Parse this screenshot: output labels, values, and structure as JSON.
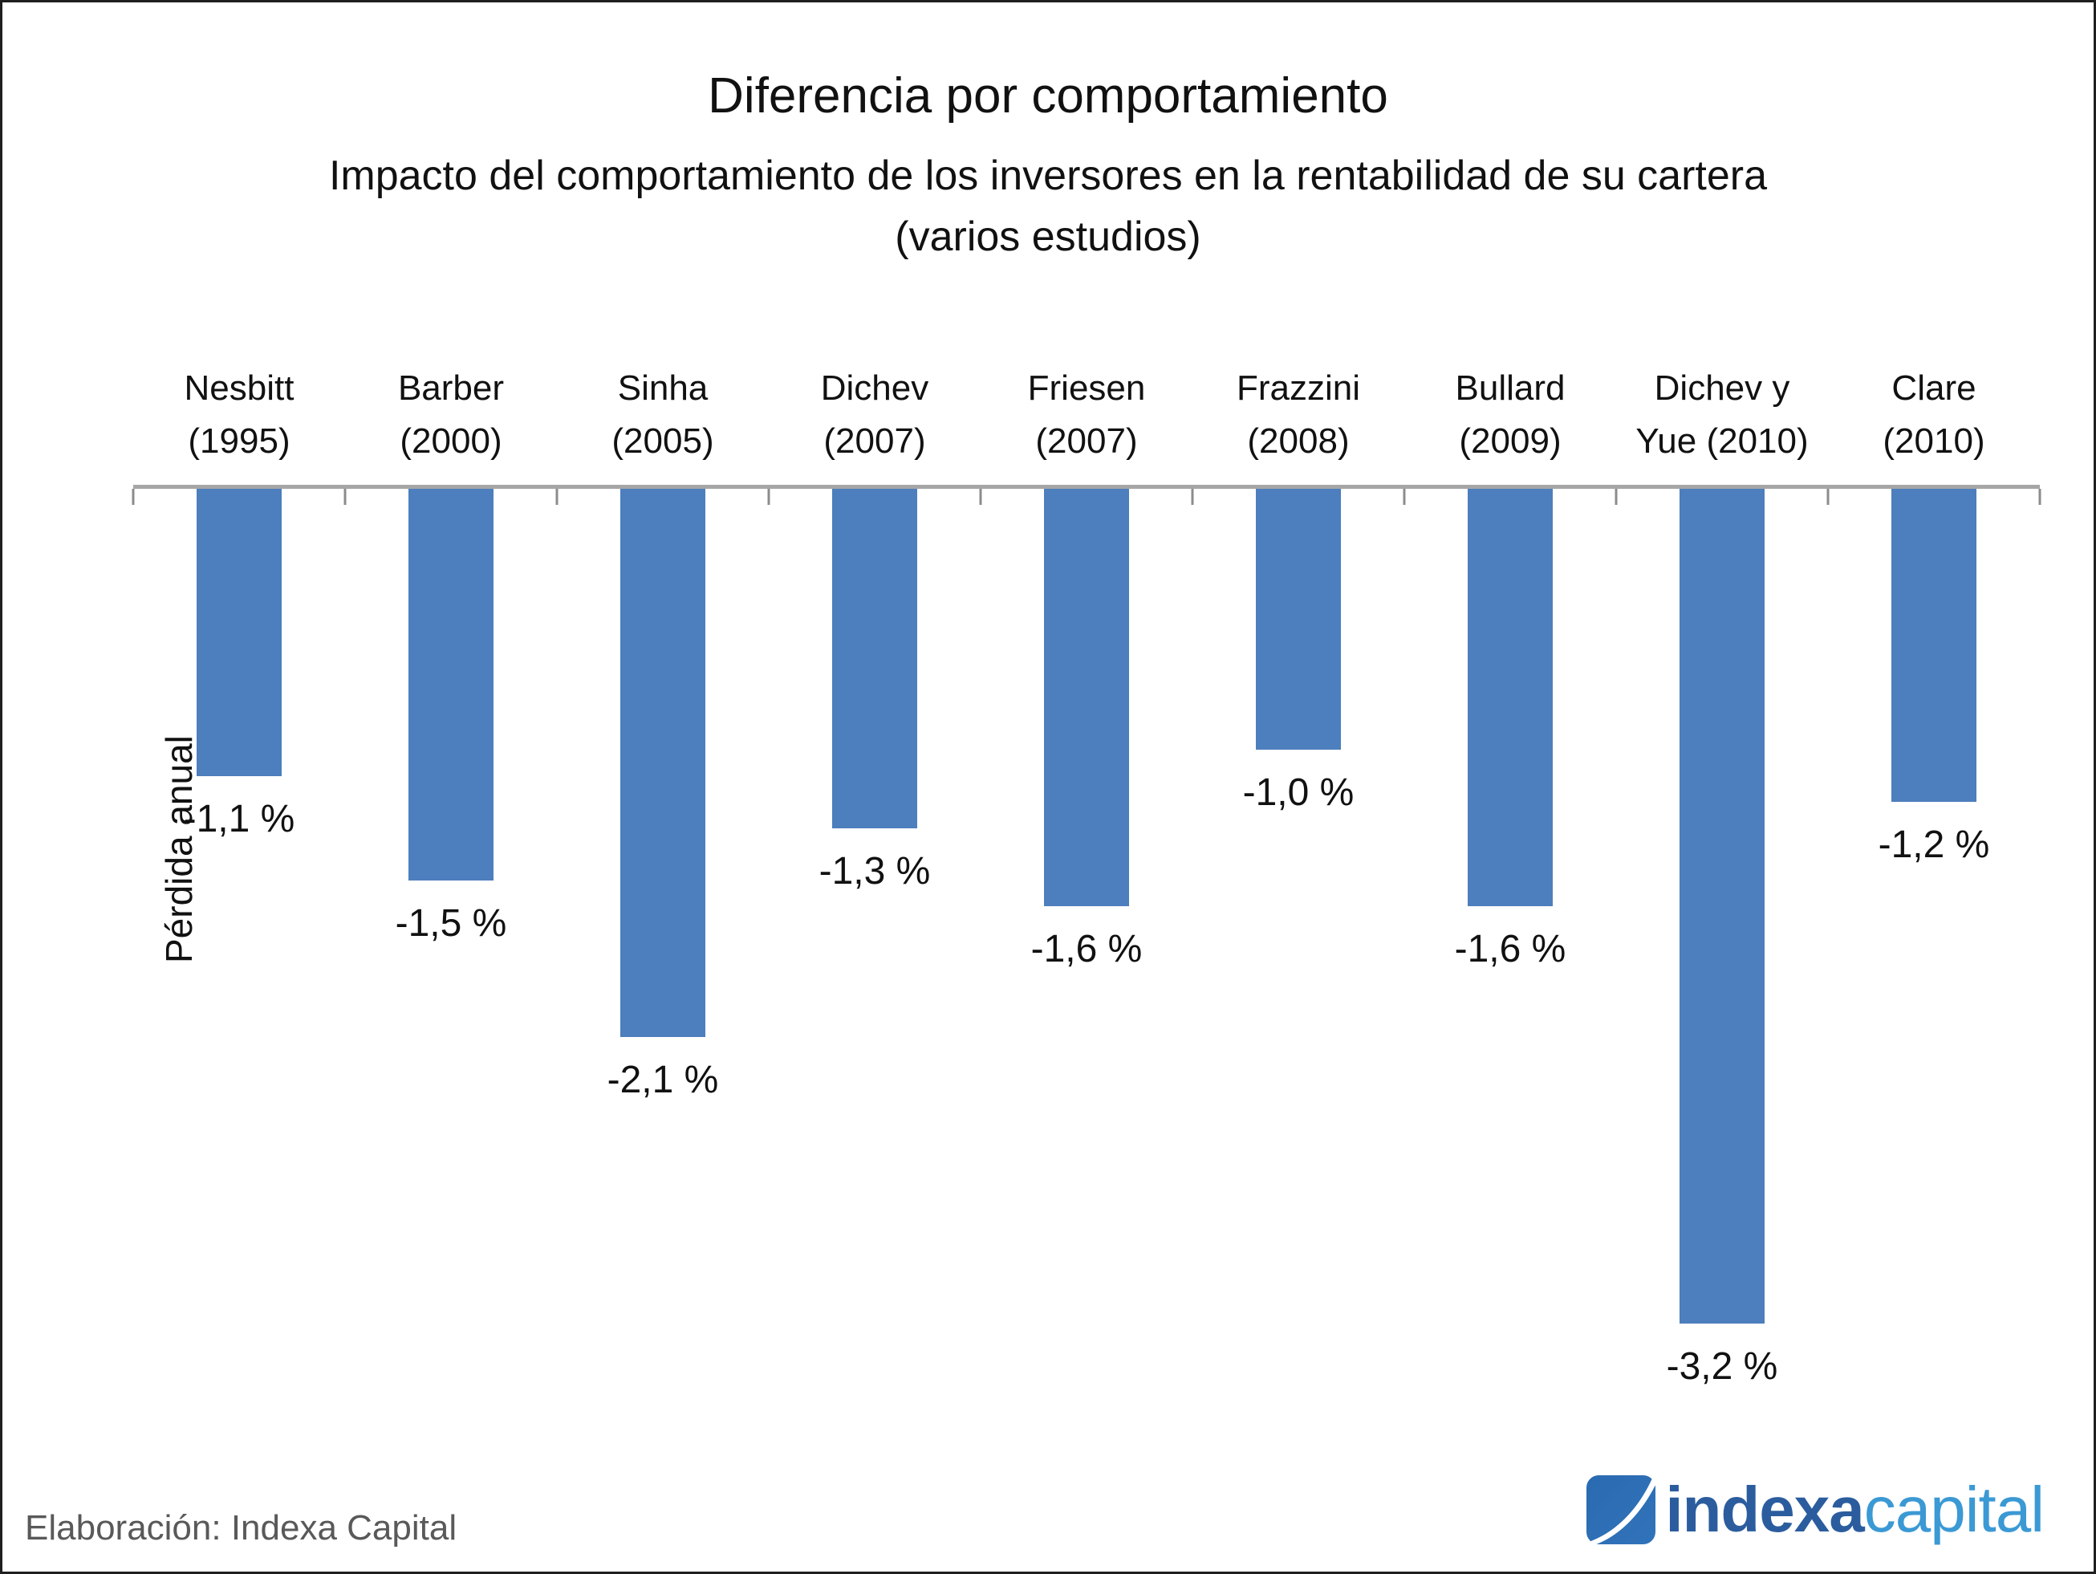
{
  "chart_data": {
    "type": "bar",
    "title": "Diferencia por comportamiento",
    "subtitle": "Impacto del comportamiento de los inversores en la rentabilidad de su cartera",
    "subtitle2": "(varios estudios)",
    "ylabel": "Pérdida anual",
    "categories": [
      {
        "line1": "Nesbitt",
        "line2": "(1995)"
      },
      {
        "line1": "Barber",
        "line2": "(2000)"
      },
      {
        "line1": "Sinha",
        "line2": "(2005)"
      },
      {
        "line1": "Dichev",
        "line2": "(2007)"
      },
      {
        "line1": "Friesen",
        "line2": "(2007)"
      },
      {
        "line1": "Frazzini",
        "line2": "(2008)"
      },
      {
        "line1": "Bullard",
        "line2": "(2009)"
      },
      {
        "line1": "Dichev y",
        "line2": "Yue (2010)"
      },
      {
        "line1": "Clare",
        "line2": "(2010)"
      }
    ],
    "values": [
      -1.1,
      -1.5,
      -2.1,
      -1.3,
      -1.6,
      -1.0,
      -1.6,
      -3.2,
      -1.2
    ],
    "value_labels": [
      "-1,1 %",
      "-1,5 %",
      "-2,1 %",
      "-1,3 %",
      "-1,6 %",
      "-1,0 %",
      "-1,6 %",
      "-3,2 %",
      "-1,2 %"
    ],
    "ylim": [
      -3.5,
      0
    ],
    "grid": false,
    "legend": "none",
    "bar_color": "#4d7ebd",
    "axis_color": "#a6a6a6"
  },
  "footer": {
    "credit": "Elaboración: Indexa Capital"
  },
  "logo": {
    "text_bold": "indexa",
    "text_light": "capital",
    "color_dark": "#2b5d9e",
    "color_light": "#3b99d4"
  }
}
